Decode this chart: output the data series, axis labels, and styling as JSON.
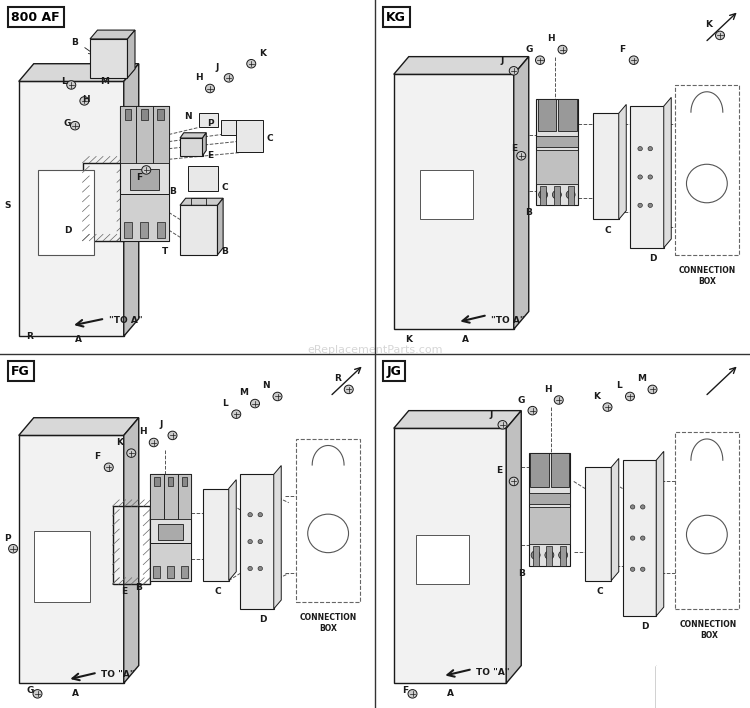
{
  "bg": "#ffffff",
  "line_color": "#1a1a1a",
  "fill_panel": "#f0f0f0",
  "fill_white": "#ffffff",
  "fill_gray": "#cccccc",
  "fill_dark": "#888888",
  "watermark": "eReplacementParts.com",
  "quad_labels": [
    "800 AF",
    "KG",
    "FG",
    "JG"
  ],
  "divider_color": "#444444"
}
